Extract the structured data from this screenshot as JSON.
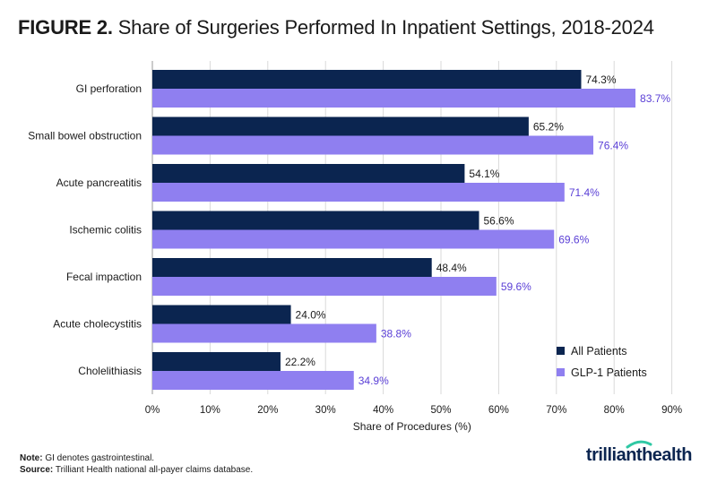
{
  "title_prefix": "FIGURE 2.",
  "title_text": "Share of Surgeries Performed In Inpatient Settings, 2018-2024",
  "footer": {
    "note_label": "Note:",
    "note_text": "GI denotes gastrointestinal.",
    "source_label": "Source:",
    "source_text": "Trilliant Health national all-payer claims database."
  },
  "logo": {
    "text_a": "trilliant",
    "text_b": "health",
    "accent": "#2fc8a4"
  },
  "colors": {
    "all": "#0b2550",
    "glp1": "#8f7ff0",
    "glp1_label": "#5a3fd6",
    "grid": "#d9d9d9"
  },
  "chart_data": {
    "type": "bar",
    "orientation": "horizontal",
    "categories": [
      "GI perforation",
      "Small bowel obstruction",
      "Acute pancreatitis",
      "Ischemic colitis",
      "Fecal impaction",
      "Acute cholecystitis",
      "Cholelithiasis"
    ],
    "series": [
      {
        "name": "All Patients",
        "values": [
          74.3,
          65.2,
          54.1,
          56.6,
          48.4,
          24.0,
          22.2
        ],
        "labels": [
          "74.3%",
          "65.2%",
          "54.1%",
          "56.6%",
          "48.4%",
          "24.0%",
          "22.2%"
        ]
      },
      {
        "name": "GLP-1 Patients",
        "values": [
          83.7,
          76.4,
          71.4,
          69.6,
          59.6,
          38.8,
          34.9
        ],
        "labels": [
          "83.7%",
          "76.4%",
          "71.4%",
          "69.6%",
          "59.6%",
          "38.8%",
          "34.9%"
        ]
      }
    ],
    "xlabel": "Share of Procedures (%)",
    "xlim": [
      0,
      90
    ],
    "xticks": [
      0,
      10,
      20,
      30,
      40,
      50,
      60,
      70,
      80,
      90
    ],
    "xtick_labels": [
      "0%",
      "10%",
      "20%",
      "30%",
      "40%",
      "50%",
      "60%",
      "70%",
      "80%",
      "90%"
    ],
    "grid": true,
    "legend_position": "bottom-right"
  }
}
